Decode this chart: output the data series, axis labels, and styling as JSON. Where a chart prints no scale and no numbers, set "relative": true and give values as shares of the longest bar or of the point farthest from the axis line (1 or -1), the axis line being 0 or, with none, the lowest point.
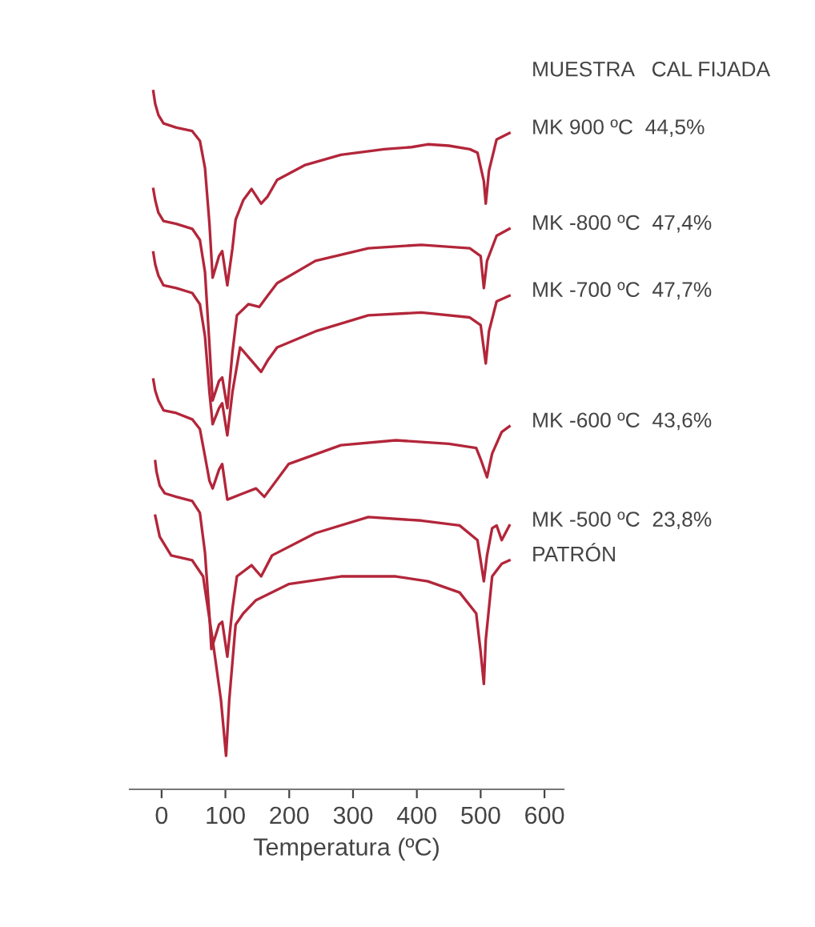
{
  "chart_data": {
    "type": "line",
    "relative": true,
    "xlabel": "Temperatura (ºC)",
    "legend_title": "MUESTRA   CAL FIJADA",
    "tick_labels": "x",
    "grid": false,
    "line_style": "solid",
    "marker": "none",
    "xlim": [
      -50,
      630
    ],
    "xticks": [
      0,
      100,
      200,
      300,
      400,
      500,
      600
    ],
    "series": [
      {
        "name": "MK 900 ºC  44,5%",
        "color": "#b3263a",
        "x": [
          -13,
          -10,
          -5,
          3,
          23,
          48,
          60,
          68,
          75,
          80,
          90,
          95,
          103,
          111,
          116,
          128,
          141,
          156,
          166,
          181,
          224,
          281,
          349,
          392,
          417,
          450,
          483,
          495,
          505,
          508,
          513,
          525,
          545
        ],
        "values": [
          1.0,
          0.982,
          0.966,
          0.954,
          0.948,
          0.943,
          0.929,
          0.89,
          0.81,
          0.733,
          0.764,
          0.771,
          0.722,
          0.775,
          0.816,
          0.844,
          0.86,
          0.839,
          0.849,
          0.873,
          0.894,
          0.909,
          0.917,
          0.92,
          0.924,
          0.922,
          0.917,
          0.912,
          0.871,
          0.839,
          0.886,
          0.931,
          0.94
        ]
      },
      {
        "name": "MK -800 ºC  47,4%",
        "color": "#b3263a",
        "x": [
          -13,
          -10,
          -5,
          3,
          23,
          48,
          60,
          68,
          75,
          80,
          90,
          95,
          103,
          111,
          118,
          136,
          153,
          166,
          181,
          241,
          324,
          407,
          483,
          500,
          505,
          510,
          525,
          545
        ],
        "values": [
          0.86,
          0.844,
          0.826,
          0.814,
          0.81,
          0.803,
          0.787,
          0.741,
          0.637,
          0.557,
          0.585,
          0.59,
          0.546,
          0.626,
          0.679,
          0.695,
          0.691,
          0.707,
          0.725,
          0.757,
          0.775,
          0.78,
          0.775,
          0.764,
          0.718,
          0.757,
          0.793,
          0.803
        ]
      },
      {
        "name": "MK -700 ºC  47,7%",
        "color": "#b3263a",
        "x": [
          -13,
          -10,
          -5,
          3,
          23,
          48,
          60,
          68,
          75,
          80,
          90,
          95,
          103,
          111,
          123,
          141,
          156,
          166,
          181,
          241,
          324,
          407,
          483,
          500,
          508,
          513,
          525,
          545
        ],
        "values": [
          0.769,
          0.752,
          0.736,
          0.722,
          0.718,
          0.711,
          0.695,
          0.649,
          0.569,
          0.523,
          0.546,
          0.553,
          0.507,
          0.569,
          0.633,
          0.614,
          0.598,
          0.614,
          0.633,
          0.656,
          0.679,
          0.683,
          0.676,
          0.665,
          0.61,
          0.656,
          0.699,
          0.707
        ]
      },
      {
        "name": "MK -600 ºC  43,6%",
        "color": "#b3263a",
        "x": [
          -13,
          -10,
          -5,
          3,
          23,
          48,
          60,
          68,
          75,
          80,
          90,
          95,
          103,
          128,
          148,
          161,
          199,
          281,
          367,
          450,
          493,
          500,
          510,
          518,
          533,
          545
        ],
        "values": [
          0.587,
          0.571,
          0.557,
          0.543,
          0.539,
          0.53,
          0.516,
          0.477,
          0.442,
          0.431,
          0.458,
          0.466,
          0.415,
          0.424,
          0.431,
          0.419,
          0.466,
          0.493,
          0.5,
          0.495,
          0.489,
          0.473,
          0.447,
          0.481,
          0.512,
          0.52
        ]
      },
      {
        "name": "MK -500 ºC  23,8%",
        "color": "#b3263a",
        "x": [
          -10,
          -8,
          -3,
          5,
          23,
          48,
          60,
          68,
          75,
          78,
          90,
          95,
          103,
          111,
          118,
          141,
          156,
          173,
          241,
          324,
          407,
          467,
          495,
          505,
          510,
          518,
          525,
          533,
          545
        ],
        "values": [
          0.47,
          0.455,
          0.435,
          0.424,
          0.419,
          0.413,
          0.396,
          0.339,
          0.248,
          0.201,
          0.236,
          0.24,
          0.19,
          0.259,
          0.305,
          0.321,
          0.305,
          0.335,
          0.367,
          0.39,
          0.385,
          0.378,
          0.357,
          0.298,
          0.335,
          0.374,
          0.378,
          0.357,
          0.378
        ]
      },
      {
        "name": "PATRÓN",
        "color": "#b3263a",
        "x": [
          -10,
          -3,
          15,
          48,
          65,
          80,
          93,
          101,
          106,
          116,
          128,
          148,
          199,
          281,
          367,
          417,
          467,
          493,
          500,
          505,
          508,
          518,
          533,
          545
        ],
        "values": [
          0.392,
          0.362,
          0.335,
          0.328,
          0.305,
          0.214,
          0.128,
          0.048,
          0.128,
          0.236,
          0.252,
          0.271,
          0.294,
          0.305,
          0.305,
          0.298,
          0.282,
          0.252,
          0.197,
          0.151,
          0.214,
          0.305,
          0.323,
          0.328
        ]
      }
    ]
  }
}
